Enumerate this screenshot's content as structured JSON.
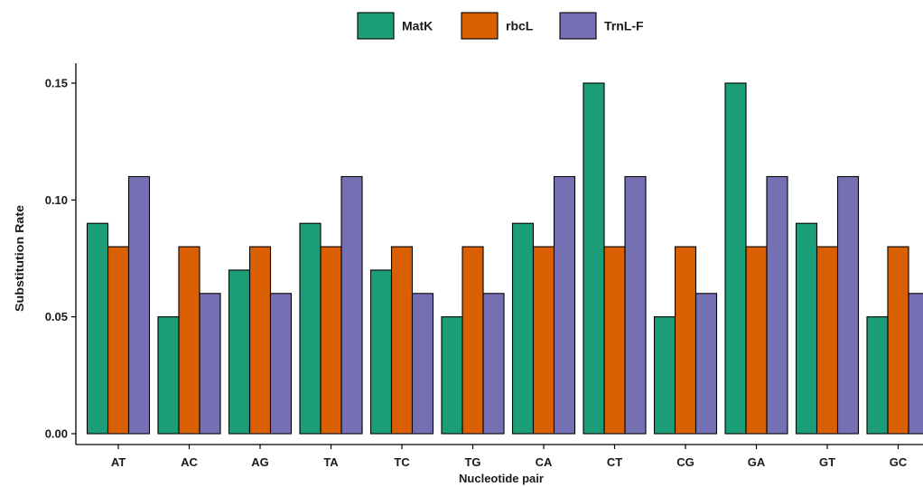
{
  "chart_data": {
    "type": "bar",
    "xlabel": "Nucleotide pair",
    "ylabel": "Substitution Rate",
    "categories": [
      "AT",
      "AC",
      "AG",
      "TA",
      "TC",
      "TG",
      "CA",
      "CT",
      "CG",
      "GA",
      "GT",
      "GC"
    ],
    "series": [
      {
        "name": "MatK",
        "color": "#1b9e77",
        "values": [
          0.09,
          0.05,
          0.07,
          0.09,
          0.07,
          0.05,
          0.09,
          0.15,
          0.05,
          0.15,
          0.09,
          0.05
        ]
      },
      {
        "name": "rbcL",
        "color": "#d95f02",
        "values": [
          0.08,
          0.08,
          0.08,
          0.08,
          0.08,
          0.08,
          0.08,
          0.08,
          0.08,
          0.08,
          0.08,
          0.08
        ]
      },
      {
        "name": "TrnL-F",
        "color": "#7570b3",
        "values": [
          0.11,
          0.06,
          0.06,
          0.11,
          0.06,
          0.06,
          0.11,
          0.11,
          0.06,
          0.11,
          0.11,
          0.06
        ]
      }
    ],
    "ylim": [
      0,
      0.16
    ],
    "yticks": [
      0.0,
      0.05,
      0.1,
      0.15
    ],
    "ytick_labels": [
      "0.00",
      "0.05",
      "0.10",
      "0.15"
    ],
    "grid": false,
    "legend_position": "top"
  }
}
